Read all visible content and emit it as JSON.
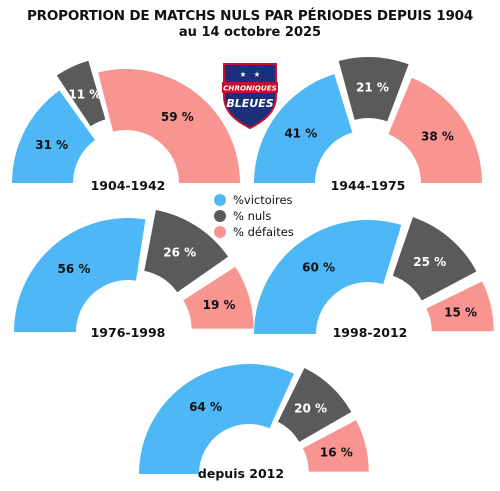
{
  "title": "PROPORTION DE MATCHS NULS PAR PÉRIODES DEPUIS 1904",
  "subtitle": "au 14 octobre 2025",
  "logo": {
    "line1": "CHRONIQUES",
    "line2": "BLEUES"
  },
  "legend": [
    {
      "label": "%victoires",
      "color": "#4db8f5"
    },
    {
      "label": "% nuls",
      "color": "#5a5a5a"
    },
    {
      "label": "% défaites",
      "color": "#f99590"
    }
  ],
  "colors": {
    "victoires": "#4db8f5",
    "nuls": "#5a5a5a",
    "defaites": "#f99590"
  },
  "chart_data": [
    {
      "type": "pie",
      "title": "1904-1942",
      "categories": [
        "%victoires",
        "% nuls",
        "% défaites"
      ],
      "values": [
        31,
        11,
        59
      ],
      "labels": [
        "31 %",
        "11 %",
        "59 %"
      ]
    },
    {
      "type": "pie",
      "title": "1944-1975",
      "categories": [
        "%victoires",
        "% nuls",
        "% défaites"
      ],
      "values": [
        41,
        21,
        38
      ],
      "labels": [
        "41 %",
        "21 %",
        "38 %"
      ]
    },
    {
      "type": "pie",
      "title": "1976-1998",
      "categories": [
        "%victoires",
        "% nuls",
        "% défaites"
      ],
      "values": [
        56,
        26,
        19
      ],
      "labels": [
        "56 %",
        "26 %",
        "19 %"
      ]
    },
    {
      "type": "pie",
      "title": "1998-2012",
      "categories": [
        "%victoires",
        "% nuls",
        "% défaites"
      ],
      "values": [
        60,
        25,
        15
      ],
      "labels": [
        "60 %",
        "25 %",
        "15 %"
      ]
    },
    {
      "type": "pie",
      "title": "depuis 2012",
      "categories": [
        "%victoires",
        "% nuls",
        "% défaites"
      ],
      "values": [
        64,
        20,
        16
      ],
      "labels": [
        "64 %",
        "20 %",
        "16 %"
      ]
    }
  ]
}
